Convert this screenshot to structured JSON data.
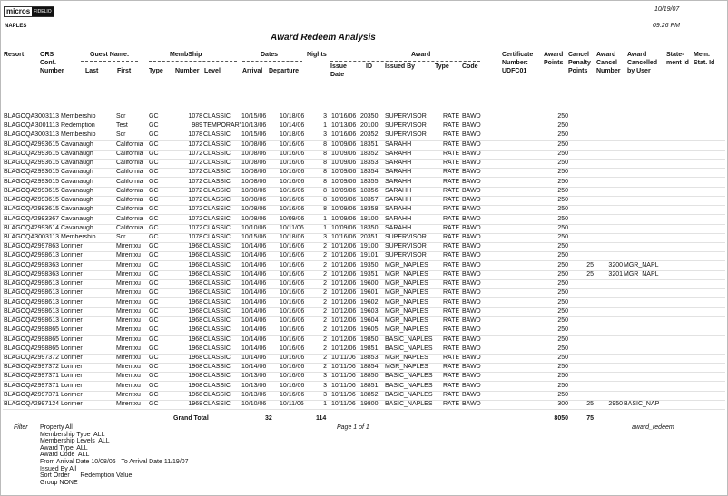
{
  "header": {
    "logo_brand": "micros",
    "logo_sub": "FIDELIO",
    "date": "10/19/07",
    "time": "09:26 PM",
    "property": "NAPLES",
    "title": "Award Redeem Analysis"
  },
  "table": {
    "group_headers": [
      "Guest Name:",
      "MembShip",
      "Dates",
      "Award"
    ],
    "columns": [
      "Resort",
      "ORS\nConf.\nNumber",
      "Last",
      "First",
      "Type",
      "Number",
      "Level",
      "Arrival",
      "Departure",
      "Nights",
      "Issue\nDate",
      "ID",
      "Issued By",
      "Type",
      "Code",
      "Certificate\nNumber:\nUDFC01",
      "Award\nPoints",
      "Cancel\nPenalty\nPoints",
      "Award\nCancel\nNumber",
      "Award\nCancelled\nby User",
      "State-\nment Id",
      "Mem.\nStat. Id"
    ],
    "rows": [
      [
        "BLAGOQA",
        "3003113",
        "Membership",
        "Scr",
        "GC",
        "1078",
        "CLASSIC",
        "10/15/06",
        "10/18/06",
        "3",
        "10/16/06",
        "20350",
        "SUPERVISOR",
        "RATE",
        "BAWD",
        null,
        "250",
        null,
        null,
        null,
        null,
        null
      ],
      [
        "BLAGOQA",
        "3001113",
        "Redemption",
        "Test",
        "GC",
        "989",
        "TEMPORARY",
        "10/13/06",
        "10/14/06",
        "1",
        "10/13/06",
        "20100",
        "SUPERVISOR",
        "RATE",
        "BAWD",
        null,
        "250",
        null,
        null,
        null,
        null,
        null
      ],
      [
        "BLAGOQA",
        "3003113",
        "Membership",
        "Scr",
        "GC",
        "1078",
        "CLASSIC",
        "10/15/06",
        "10/18/06",
        "3",
        "10/16/06",
        "20352",
        "SUPERVISOR",
        "RATE",
        "BAWD",
        null,
        "250",
        null,
        null,
        null,
        null,
        null
      ],
      [
        "BLAGOQA",
        "2993615",
        "Cavanaugh",
        "California",
        "GC",
        "1072",
        "CLASSIC",
        "10/08/06",
        "10/16/06",
        "8",
        "10/09/06",
        "18351",
        "SARAHH",
        "RATE",
        "BAWD",
        null,
        "250",
        null,
        null,
        null,
        null,
        null
      ],
      [
        "BLAGOQA",
        "2993615",
        "Cavanaugh",
        "California",
        "GC",
        "1072",
        "CLASSIC",
        "10/08/06",
        "10/16/06",
        "8",
        "10/09/06",
        "18352",
        "SARAHH",
        "RATE",
        "BAWD",
        null,
        "250",
        null,
        null,
        null,
        null,
        null
      ],
      [
        "BLAGOQA",
        "2993615",
        "Cavanaugh",
        "California",
        "GC",
        "1072",
        "CLASSIC",
        "10/08/06",
        "10/16/06",
        "8",
        "10/09/06",
        "18353",
        "SARAHH",
        "RATE",
        "BAWD",
        null,
        "250",
        null,
        null,
        null,
        null,
        null
      ],
      [
        "BLAGOQA",
        "2993615",
        "Cavanaugh",
        "California",
        "GC",
        "1072",
        "CLASSIC",
        "10/08/06",
        "10/16/06",
        "8",
        "10/09/06",
        "18354",
        "SARAHH",
        "RATE",
        "BAWD",
        null,
        "250",
        null,
        null,
        null,
        null,
        null
      ],
      [
        "BLAGOQA",
        "2993615",
        "Cavanaugh",
        "California",
        "GC",
        "1072",
        "CLASSIC",
        "10/08/06",
        "10/16/06",
        "8",
        "10/09/06",
        "18355",
        "SARAHH",
        "RATE",
        "BAWD",
        null,
        "250",
        null,
        null,
        null,
        null,
        null
      ],
      [
        "BLAGOQA",
        "2993615",
        "Cavanaugh",
        "California",
        "GC",
        "1072",
        "CLASSIC",
        "10/08/06",
        "10/16/06",
        "8",
        "10/09/06",
        "18356",
        "SARAHH",
        "RATE",
        "BAWD",
        null,
        "250",
        null,
        null,
        null,
        null,
        null
      ],
      [
        "BLAGOQA",
        "2993615",
        "Cavanaugh",
        "California",
        "GC",
        "1072",
        "CLASSIC",
        "10/08/06",
        "10/16/06",
        "8",
        "10/09/06",
        "18357",
        "SARAHH",
        "RATE",
        "BAWD",
        null,
        "250",
        null,
        null,
        null,
        null,
        null
      ],
      [
        "BLAGOQA",
        "2993615",
        "Cavanaugh",
        "California",
        "GC",
        "1072",
        "CLASSIC",
        "10/08/06",
        "10/16/06",
        "8",
        "10/09/06",
        "18358",
        "SARAHH",
        "RATE",
        "BAWD",
        null,
        "250",
        null,
        null,
        null,
        null,
        null
      ],
      [
        "BLAGOQA",
        "2993367",
        "Cavanaugh",
        "California",
        "GC",
        "1072",
        "CLASSIC",
        "10/08/06",
        "10/09/06",
        "1",
        "10/09/06",
        "18100",
        "SARAHH",
        "RATE",
        "BAWD",
        null,
        "250",
        null,
        null,
        null,
        null,
        null
      ],
      [
        "BLAGOQA",
        "2993614",
        "Cavanaugh",
        "California",
        "GC",
        "1072",
        "CLASSIC",
        "10/10/06",
        "10/11/06",
        "1",
        "10/09/06",
        "18350",
        "SARAHH",
        "RATE",
        "BAWD",
        null,
        "250",
        null,
        null,
        null,
        null,
        null
      ],
      [
        "BLAGOQA",
        "3003113",
        "Membership",
        "Scr",
        "GC",
        "1078",
        "CLASSIC",
        "10/15/06",
        "10/18/06",
        "3",
        "10/16/06",
        "20351",
        "SUPERVISOR",
        "RATE",
        "BAWD",
        null,
        "250",
        null,
        null,
        null,
        null,
        null
      ],
      [
        "BLAGOQA",
        "2997863",
        "Lorimer",
        "Mirentxu",
        "GC",
        "1968",
        "CLASSIC",
        "10/14/06",
        "10/16/06",
        "2",
        "10/12/06",
        "19100",
        "SUPERVISOR",
        "RATE",
        "BAWD",
        null,
        "250",
        null,
        null,
        null,
        null,
        null
      ],
      [
        "BLAGOQA",
        "2998613",
        "Lorimer",
        "Mirentxu",
        "GC",
        "1968",
        "CLASSIC",
        "10/14/06",
        "10/16/06",
        "2",
        "10/12/06",
        "19101",
        "SUPERVISOR",
        "RATE",
        "BAWD",
        null,
        "250",
        null,
        null,
        null,
        null,
        null
      ],
      [
        "BLAGOQA",
        "2998363",
        "Lorimer",
        "Mirentxu",
        "GC",
        "1968",
        "CLASSIC",
        "10/14/06",
        "10/16/06",
        "2",
        "10/12/06",
        "19350",
        "MGR_NAPLES",
        "RATE",
        "BAWD",
        null,
        "250",
        "25",
        "3200",
        "MGR_NAPL",
        null,
        null
      ],
      [
        "BLAGOQA",
        "2998363",
        "Lorimer",
        "Mirentxu",
        "GC",
        "1968",
        "CLASSIC",
        "10/14/06",
        "10/16/06",
        "2",
        "10/12/06",
        "19351",
        "MGR_NAPLES",
        "RATE",
        "BAWD",
        null,
        "250",
        "25",
        "3201",
        "MGR_NAPL",
        null,
        null
      ],
      [
        "BLAGOQA",
        "2998613",
        "Lorimer",
        "Mirentxu",
        "GC",
        "1968",
        "CLASSIC",
        "10/14/06",
        "10/16/06",
        "2",
        "10/12/06",
        "19600",
        "MGR_NAPLES",
        "RATE",
        "BAWD",
        null,
        "250",
        null,
        null,
        null,
        null,
        null
      ],
      [
        "BLAGOQA",
        "2998613",
        "Lorimer",
        "Mirentxu",
        "GC",
        "1968",
        "CLASSIC",
        "10/14/06",
        "10/16/06",
        "2",
        "10/12/06",
        "19601",
        "MGR_NAPLES",
        "RATE",
        "BAWD",
        null,
        "250",
        null,
        null,
        null,
        null,
        null
      ],
      [
        "BLAGOQA",
        "2998613",
        "Lorimer",
        "Mirentxu",
        "GC",
        "1968",
        "CLASSIC",
        "10/14/06",
        "10/16/06",
        "2",
        "10/12/06",
        "19602",
        "MGR_NAPLES",
        "RATE",
        "BAWD",
        null,
        "250",
        null,
        null,
        null,
        null,
        null
      ],
      [
        "BLAGOQA",
        "2998613",
        "Lorimer",
        "Mirentxu",
        "GC",
        "1968",
        "CLASSIC",
        "10/14/06",
        "10/16/06",
        "2",
        "10/12/06",
        "19603",
        "MGR_NAPLES",
        "RATE",
        "BAWD",
        null,
        "250",
        null,
        null,
        null,
        null,
        null
      ],
      [
        "BLAGOQA",
        "2998613",
        "Lorimer",
        "Mirentxu",
        "GC",
        "1968",
        "CLASSIC",
        "10/14/06",
        "10/16/06",
        "2",
        "10/12/06",
        "19604",
        "MGR_NAPLES",
        "RATE",
        "BAWD",
        null,
        "250",
        null,
        null,
        null,
        null,
        null
      ],
      [
        "BLAGOQA",
        "2998865",
        "Lorimer",
        "Mirentxu",
        "GC",
        "1968",
        "CLASSIC",
        "10/14/06",
        "10/16/06",
        "2",
        "10/12/06",
        "19605",
        "MGR_NAPLES",
        "RATE",
        "BAWD",
        null,
        "250",
        null,
        null,
        null,
        null,
        null
      ],
      [
        "BLAGOQA",
        "2998865",
        "Lorimer",
        "Mirentxu",
        "GC",
        "1968",
        "CLASSIC",
        "10/14/06",
        "10/16/06",
        "2",
        "10/12/06",
        "19850",
        "BASIC_NAPLES",
        "RATE",
        "BAWD",
        null,
        "250",
        null,
        null,
        null,
        null,
        null
      ],
      [
        "BLAGOQA",
        "2998865",
        "Lorimer",
        "Mirentxu",
        "GC",
        "1968",
        "CLASSIC",
        "10/14/06",
        "10/16/06",
        "2",
        "10/12/06",
        "19851",
        "BASIC_NAPLES",
        "RATE",
        "BAWD",
        null,
        "250",
        null,
        null,
        null,
        null,
        null
      ],
      [
        "BLAGOQA",
        "2997372",
        "Lorimer",
        "Mirentxu",
        "GC",
        "1968",
        "CLASSIC",
        "10/14/06",
        "10/16/06",
        "2",
        "10/11/06",
        "18853",
        "MGR_NAPLES",
        "RATE",
        "BAWD",
        null,
        "250",
        null,
        null,
        null,
        null,
        null
      ],
      [
        "BLAGOQA",
        "2997372",
        "Lorimer",
        "Mirentxu",
        "GC",
        "1968",
        "CLASSIC",
        "10/14/06",
        "10/16/06",
        "2",
        "10/11/06",
        "18854",
        "MGR_NAPLES",
        "RATE",
        "BAWD",
        null,
        "250",
        null,
        null,
        null,
        null,
        null
      ],
      [
        "BLAGOQA",
        "2997371",
        "Lorimer",
        "Mirentxu",
        "GC",
        "1968",
        "CLASSIC",
        "10/13/06",
        "10/16/06",
        "3",
        "10/11/06",
        "18850",
        "BASIC_NAPLES",
        "RATE",
        "BAWD",
        null,
        "250",
        null,
        null,
        null,
        null,
        null
      ],
      [
        "BLAGOQA",
        "2997371",
        "Lorimer",
        "Mirentxu",
        "GC",
        "1968",
        "CLASSIC",
        "10/13/06",
        "10/16/06",
        "3",
        "10/11/06",
        "18851",
        "BASIC_NAPLES",
        "RATE",
        "BAWD",
        null,
        "250",
        null,
        null,
        null,
        null,
        null
      ],
      [
        "BLAGOQA",
        "2997371",
        "Lorimer",
        "Mirentxu",
        "GC",
        "1968",
        "CLASSIC",
        "10/13/06",
        "10/16/06",
        "3",
        "10/11/06",
        "18852",
        "BASIC_NAPLES",
        "RATE",
        "BAWD",
        null,
        "250",
        null,
        null,
        null,
        null,
        null
      ],
      [
        "BLAGOQA",
        "2997124",
        "Lorimer",
        "Mirentxu",
        "GC",
        "1968",
        "CLASSIC",
        "10/10/06",
        "10/11/06",
        "1",
        "10/11/06",
        "19800",
        "BASIC_NAPLES",
        "RATE",
        "BAWD",
        null,
        "300",
        "25",
        "2950",
        "BASIC_NAP",
        null,
        null
      ]
    ]
  },
  "totals": {
    "label": "Grand Total",
    "count": "32",
    "nights": "114",
    "page": "Page 1 of 1",
    "award_points": "8050",
    "cancel_penalty": "75",
    "report_name": "award_redeem"
  },
  "filter": {
    "label": "Filter",
    "lines": [
      "Property All",
      "Membership Type  ALL",
      "Membership Levels  ALL",
      "Award Type  ALL",
      "Award Code  ALL",
      "From Arrival Date 10/08/06   To Arrival Date 11/19/07",
      "Issued By All",
      "Sort Order      Redemption Value",
      "Group NONE"
    ]
  }
}
